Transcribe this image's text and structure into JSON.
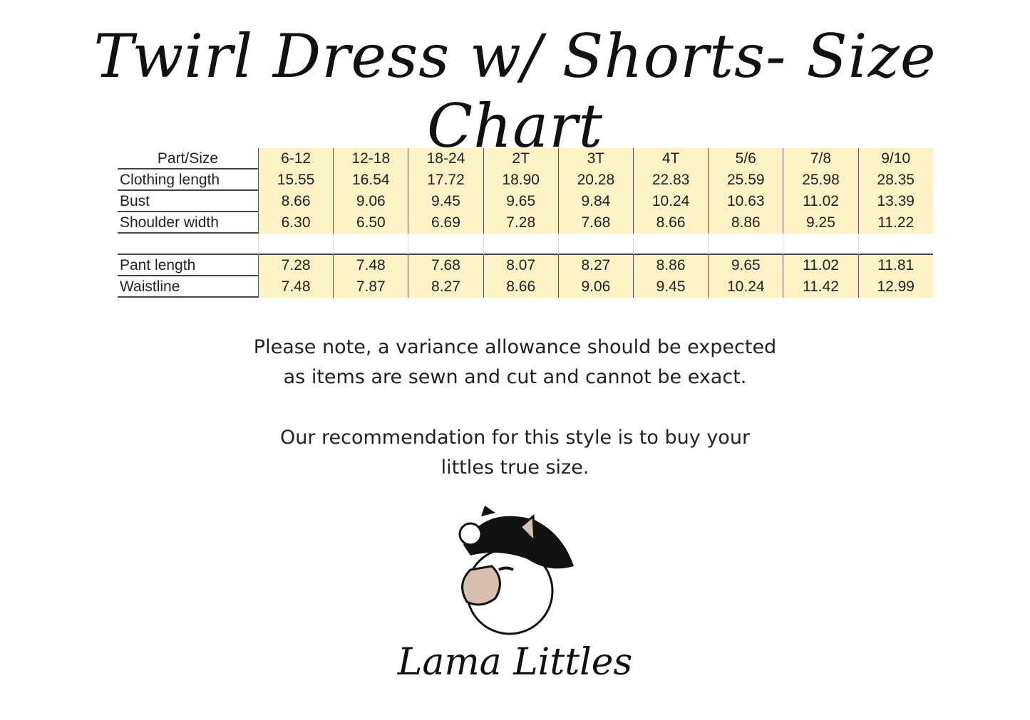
{
  "header": {
    "title": "Twirl Dress w/ Shorts- Size Chart"
  },
  "table": {
    "columns": [
      "Part/Size",
      "6-12",
      "12-18",
      "18-24",
      "2T",
      "3T",
      "4T",
      "5/6",
      "7/8",
      "9/10"
    ],
    "top_rows": [
      [
        "Clothing length",
        "15.55",
        "16.54",
        "17.72",
        "18.90",
        "20.28",
        "22.83",
        "25.59",
        "25.98",
        "28.35"
      ],
      [
        "Bust",
        "8.66",
        "9.06",
        "9.45",
        "9.65",
        "9.84",
        "10.24",
        "10.63",
        "11.02",
        "13.39"
      ],
      [
        "Shoulder width",
        "6.30",
        "6.50",
        "6.69",
        "7.28",
        "7.68",
        "8.66",
        "8.86",
        "9.25",
        "11.22"
      ]
    ],
    "bottom_rows": [
      [
        "Pant length",
        "7.28",
        "7.48",
        "7.68",
        "8.07",
        "8.27",
        "8.86",
        "9.65",
        "11.02",
        "11.81"
      ],
      [
        "Waistline",
        "7.48",
        "7.87",
        "8.27",
        "8.66",
        "9.06",
        "9.45",
        "10.24",
        "11.42",
        "12.99"
      ]
    ]
  },
  "notes": [
    [
      "Please note, a variance allowance should be expected",
      "as items are sewn and cut and cannot be exact."
    ],
    [
      "Our recommendation for this style is to buy your",
      "littles true size."
    ]
  ],
  "logo": {
    "text": "Lama Littles"
  }
}
